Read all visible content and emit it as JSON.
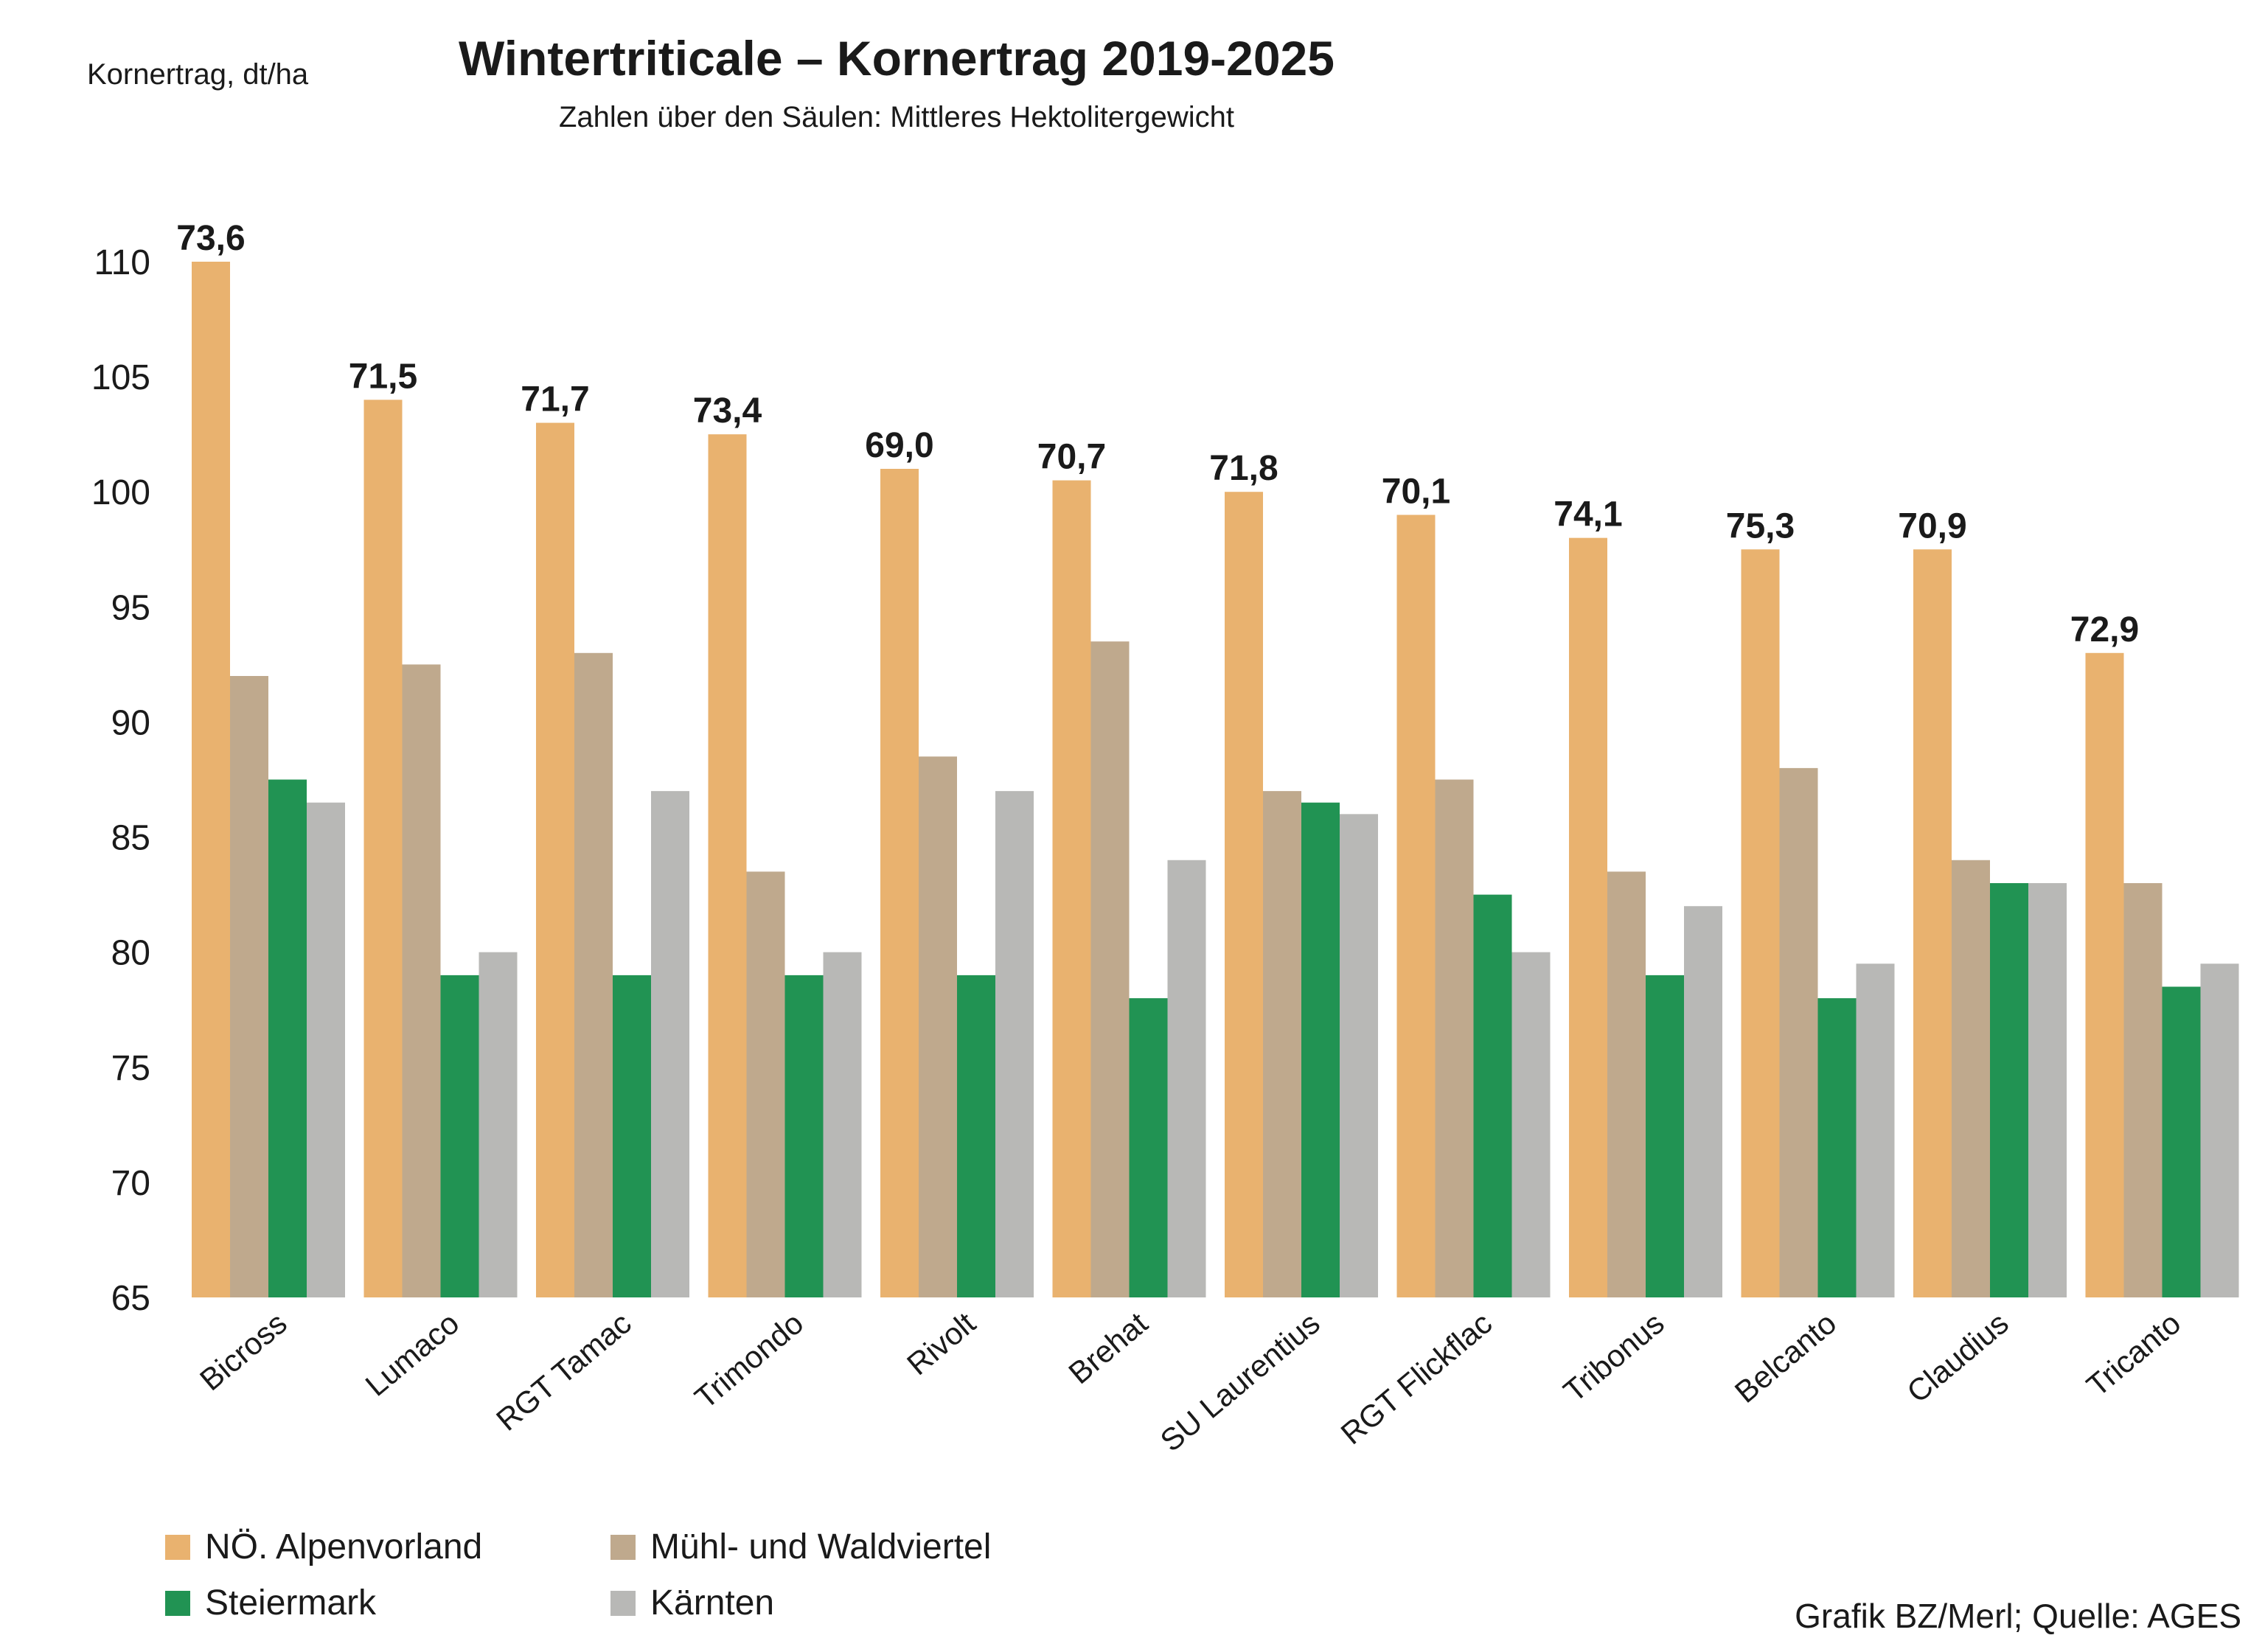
{
  "chart_data": {
    "type": "bar",
    "title": "Wintertriticale – Kornertrag 2019-2025",
    "subtitle": "Zahlen über den Säulen: Mittleres Hektolitergewicht",
    "ylabel": "Kornertrag, dt/ha",
    "xlabel": "",
    "ylim": [
      65,
      110
    ],
    "yticks": [
      65,
      70,
      75,
      80,
      85,
      90,
      95,
      100,
      105,
      110
    ],
    "grid": false,
    "legend_position": "bottom-left",
    "categories": [
      "Bicross",
      "Lumaco",
      "RGT Tamac",
      "Trimondo",
      "Rivolt",
      "Brehat",
      "SU Laurentius",
      "RGT Flickflac",
      "Tribonus",
      "Belcanto",
      "Claudius",
      "Tricanto"
    ],
    "series": [
      {
        "name": "NÖ. Alpenvorland",
        "color": "#e9b26f",
        "values": [
          110,
          104,
          103,
          102.5,
          101,
          100.5,
          100,
          99,
          98,
          97.5,
          97.5,
          93
        ]
      },
      {
        "name": "Mühl- und Waldviertel",
        "color": "#bfa98d",
        "values": [
          92,
          92.5,
          93,
          83.5,
          88.5,
          93.5,
          87,
          87.5,
          83.5,
          88,
          84,
          83
        ]
      },
      {
        "name": "Steiermark",
        "color": "#219353",
        "values": [
          87.5,
          79,
          79,
          79,
          79,
          78,
          86.5,
          82.5,
          79,
          78,
          83,
          78.5
        ]
      },
      {
        "name": "Kärnten",
        "color": "#b8b8b6",
        "values": [
          86.5,
          80,
          87,
          80,
          87,
          84,
          86,
          80,
          82,
          79.5,
          83,
          79.5
        ]
      }
    ],
    "data_labels": [
      "73,6",
      "71,5",
      "71,7",
      "73,4",
      "69,0",
      "70,7",
      "71,8",
      "70,1",
      "74,1",
      "75,3",
      "70,9",
      "72,9"
    ],
    "source": "Grafik BZ/Merl; Quelle: AGES"
  }
}
